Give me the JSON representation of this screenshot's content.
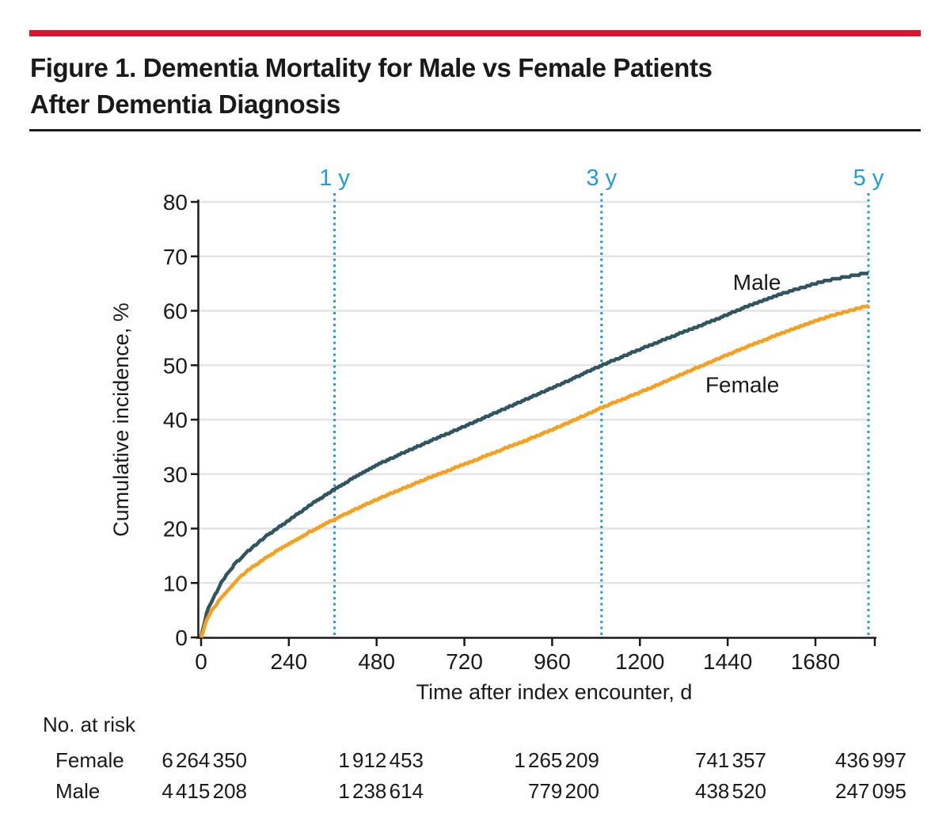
{
  "figure": {
    "title_line1": "Figure 1. Dementia Mortality for Male vs Female Patients",
    "title_line2": "After Dementia Diagnosis"
  },
  "colors": {
    "accent_red": "#D71635",
    "male": "#2F5562",
    "female": "#F6A01D",
    "year_marker": "#1F9CD8",
    "grid": "#E4E4E4",
    "axis": "#1A1A1A",
    "text": "#1A1A1A"
  },
  "chart_data": {
    "type": "line",
    "title": "",
    "xlabel": "Time after index encounter, d",
    "ylabel": "Cumulative incidence, %",
    "xlim": [
      0,
      1845
    ],
    "ylim": [
      0,
      80
    ],
    "xticks": [
      0,
      240,
      480,
      720,
      960,
      1200,
      1440,
      1680
    ],
    "yticks": [
      0,
      10,
      20,
      30,
      40,
      50,
      60,
      70,
      80
    ],
    "grid": "horizontal",
    "legend_position": "on-curve-labels",
    "year_markers": [
      {
        "label": "1 y",
        "day": 365
      },
      {
        "label": "3 y",
        "day": 1095
      },
      {
        "label": "5 y",
        "day": 1825
      }
    ],
    "series": [
      {
        "name": "Male",
        "color_key": "male",
        "label": {
          "x": 1520,
          "y": 65.2
        },
        "x": [
          0,
          15,
          30,
          60,
          90,
          120,
          180,
          240,
          300,
          365,
          430,
          500,
          600,
          700,
          800,
          900,
          1000,
          1095,
          1200,
          1300,
          1400,
          1500,
          1600,
          1700,
          1825
        ],
        "y": [
          0,
          4.5,
          6.8,
          10.6,
          13.3,
          15.4,
          18.7,
          21.5,
          24.4,
          27.2,
          29.8,
          32.3,
          35.3,
          38.2,
          41.1,
          44.1,
          47.0,
          50.0,
          52.9,
          55.6,
          58.2,
          61.0,
          63.4,
          65.4,
          67.0
        ]
      },
      {
        "name": "Female",
        "color_key": "female",
        "label": {
          "x": 1480,
          "y": 46.3
        },
        "x": [
          0,
          15,
          30,
          60,
          90,
          120,
          180,
          240,
          300,
          365,
          430,
          500,
          600,
          700,
          800,
          900,
          1000,
          1095,
          1200,
          1300,
          1400,
          1500,
          1600,
          1700,
          1825
        ],
        "y": [
          0,
          3.2,
          5.0,
          7.8,
          10.0,
          11.9,
          14.8,
          17.2,
          19.5,
          21.7,
          23.8,
          25.9,
          28.7,
          31.3,
          33.9,
          36.5,
          39.3,
          42.2,
          45.0,
          47.9,
          50.8,
          53.6,
          56.2,
          58.6,
          61.0
        ]
      }
    ]
  },
  "risk_table": {
    "header": "No. at risk",
    "rows": [
      {
        "label": "Female",
        "values": [
          "6 264 350",
          "1 912 453",
          "1 265 209",
          "741 357",
          "436 997"
        ]
      },
      {
        "label": "Male",
        "values": [
          "4 415 208",
          "1 238 614",
          "779 200",
          "438 520",
          "247 095"
        ]
      }
    ]
  }
}
